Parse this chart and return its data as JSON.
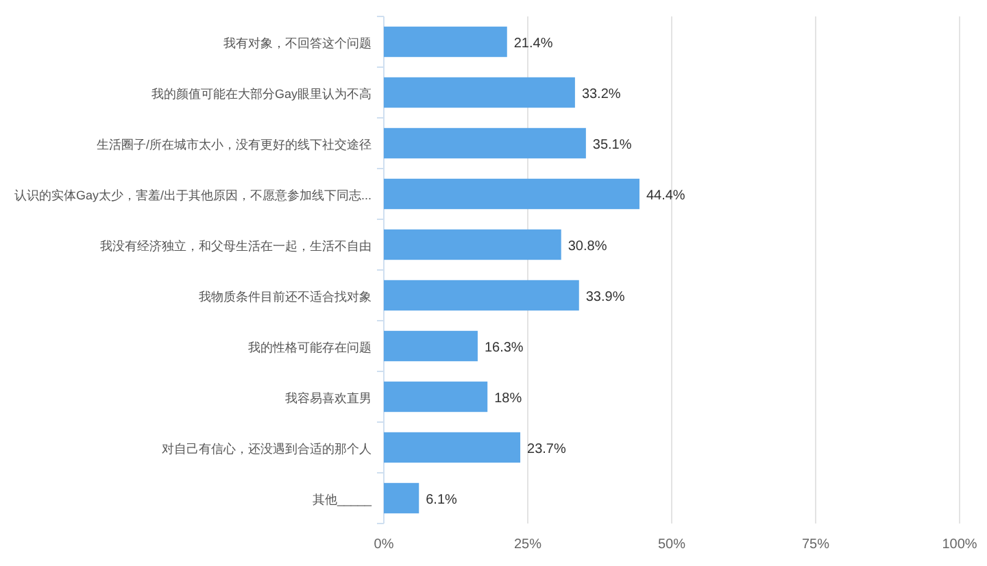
{
  "chart_data": {
    "type": "bar",
    "orientation": "horizontal",
    "categories": [
      "我有对象，不回答这个问题",
      "我的颜值可能在大部分Gay眼里认为不高",
      "生活圈子/所在城市太小，没有更好的线下社交途径",
      "认识的实体Gay太少，害羞/出于其他原因，不愿意参加线下同志...",
      "我没有经济独立，和父母生活在一起，生活不自由",
      "我物质条件目前还不适合找对象",
      "我的性格可能存在问题",
      "我容易喜欢直男",
      "对自己有信心，还没遇到合适的那个人",
      "其他_____"
    ],
    "values": [
      21.4,
      33.2,
      35.1,
      44.4,
      30.8,
      33.9,
      16.3,
      18,
      23.7,
      6.1
    ],
    "value_labels": [
      "21.4%",
      "33.2%",
      "35.1%",
      "44.4%",
      "30.8%",
      "33.9%",
      "16.3%",
      "18%",
      "23.7%",
      "6.1%"
    ],
    "color": "#5aa6e8",
    "xlim": [
      0,
      100
    ],
    "xticks": [
      {
        "value": 0,
        "label": "0%"
      },
      {
        "value": 25,
        "label": "25%"
      },
      {
        "value": 50,
        "label": "50%"
      },
      {
        "value": 75,
        "label": "75%"
      },
      {
        "value": 100,
        "label": "100%"
      }
    ],
    "grid": "x"
  }
}
